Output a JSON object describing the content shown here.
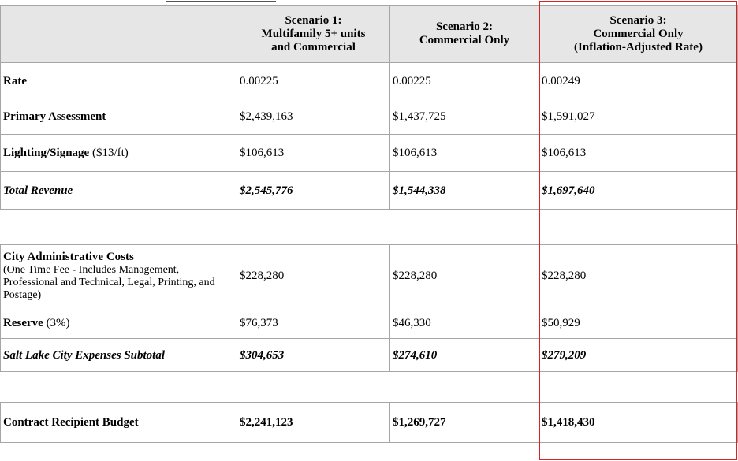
{
  "header": {
    "scenario1": [
      "Scenario 1:",
      "Multifamily 5+ units",
      "and Commercial"
    ],
    "scenario2": [
      "Scenario 2:",
      "Commercial Only"
    ],
    "scenario3": [
      "Scenario 3:",
      "Commercial Only",
      "(Inflation-Adjusted Rate)"
    ]
  },
  "rows": {
    "rate": {
      "label": "Rate",
      "s1": "0.00225",
      "s2": "0.00225",
      "s3": "0.00249"
    },
    "primary": {
      "label": "Primary Assessment",
      "s1": "$2,439,163",
      "s2": "$1,437,725",
      "s3": "$1,591,027"
    },
    "lighting": {
      "label": "Lighting/Signage",
      "note": " ($13/ft)",
      "s1": "$106,613",
      "s2": "$106,613",
      "s3": "$106,613"
    },
    "total_revenue": {
      "label": "Total Revenue",
      "s1": "$2,545,776",
      "s2": "$1,544,338",
      "s3": "$1,697,640"
    },
    "admin": {
      "label": "City Administrative Costs",
      "note": "(One Time Fee - Includes Management, Professional and Technical, Legal, Printing, and Postage)",
      "s1": "$228,280",
      "s2": "$228,280",
      "s3": "$228,280"
    },
    "reserve": {
      "label": "Reserve",
      "note": " (3%)",
      "s1": "$76,373",
      "s2": "$46,330",
      "s3": "$50,929"
    },
    "expenses_subtotal": {
      "label": "Salt Lake City Expenses Subtotal",
      "s1": "$304,653",
      "s2": "$274,610",
      "s3": "$279,209"
    },
    "contract": {
      "label": "Contract Recipient Budget",
      "s1": "$2,241,123",
      "s2": "$1,269,727",
      "s3": "$1,418,430"
    }
  },
  "colors": {
    "header_bg": "#e6e6e6",
    "border": "#a6a6a6",
    "highlight": "#e02020"
  }
}
